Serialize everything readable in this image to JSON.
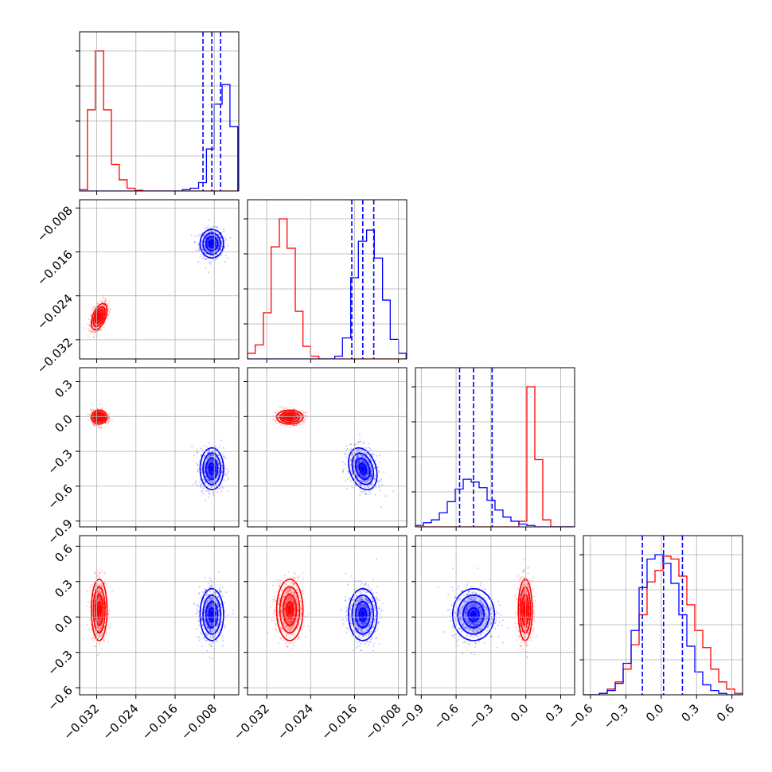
{
  "colors": {
    "blue": "#0000ff",
    "red": "#ff0000",
    "grid": "#b0b0b0"
  },
  "chart_data": {
    "type": "corner",
    "title": "",
    "parameters": [
      {
        "xlim": [
          -0.0355,
          -0.003
        ],
        "ticks": [
          -0.032,
          -0.024,
          -0.016,
          -0.008
        ],
        "tick_labels": [
          "−0.032",
          "−0.024",
          "−0.016",
          "−0.008"
        ]
      },
      {
        "xlim": [
          -0.0355,
          -0.0065
        ],
        "ticks": [
          -0.032,
          -0.024,
          -0.016,
          -0.008
        ],
        "tick_labels": [
          "−0.032",
          "−0.024",
          "−0.016",
          "−0.008"
        ]
      },
      {
        "xlim": [
          -0.95,
          0.42
        ],
        "ticks": [
          -0.9,
          -0.6,
          -0.3,
          0.0,
          0.3
        ],
        "tick_labels": [
          "−0.9",
          "−0.6",
          "−0.3",
          "0.0",
          "0.3"
        ]
      },
      {
        "xlim": [
          -0.66,
          0.69
        ],
        "ticks": [
          -0.6,
          -0.3,
          0.0,
          0.3,
          0.6
        ],
        "tick_labels": [
          "−0.6",
          "−0.3",
          "0.0",
          "0.3",
          "0.6"
        ]
      }
    ],
    "series": [
      {
        "color": "blue",
        "center": [
          -0.0085,
          -0.0145,
          -0.45,
          0.02
        ],
        "sigma": [
          0.0012,
          0.0013,
          0.09,
          0.11
        ],
        "rho": [
          [
            1,
            0,
            0,
            0
          ],
          [
            0,
            1,
            -0.3,
            0
          ],
          [
            0,
            -0.3,
            1,
            0
          ],
          [
            0,
            0,
            0,
            1
          ]
        ],
        "quantiles": [
          [
            -0.0103,
            -0.0085,
            -0.0067
          ],
          [
            -0.0165,
            -0.0145,
            -0.0125
          ],
          [
            -0.57,
            -0.45,
            -0.29
          ],
          [
            -0.16,
            0.02,
            0.18
          ]
        ]
      },
      {
        "color": "red",
        "center": [
          -0.0315,
          -0.0278,
          -0.005,
          0.06
        ],
        "sigma": [
          0.0008,
          0.0012,
          0.03,
          0.13
        ],
        "rho": [
          [
            1,
            0.5,
            0,
            0
          ],
          [
            0.5,
            1,
            0,
            0
          ],
          [
            0,
            0,
            1,
            0
          ],
          [
            0,
            0,
            0,
            1
          ]
        ],
        "quantiles": null
      }
    ],
    "histograms": {
      "0": {
        "edges": [
          -0.0355,
          -0.0339,
          -0.0323,
          -0.0306,
          -0.029,
          -0.0274,
          -0.0258,
          -0.0242,
          -0.0226,
          -0.0209,
          -0.0193,
          -0.0177,
          -0.0161,
          -0.0145,
          -0.0129,
          -0.0112,
          -0.0096,
          -0.008,
          -0.0064,
          -0.0048,
          -0.0032
        ],
        "blue": [
          0,
          0,
          0,
          0,
          0,
          0,
          0,
          0,
          0,
          0,
          0,
          0,
          0,
          0.01,
          0.02,
          0.06,
          0.3,
          0.62,
          0.76,
          0.46
        ],
        "red": [
          0.01,
          0.58,
          1.0,
          0.58,
          0.19,
          0.08,
          0.02,
          0.005,
          0,
          0,
          0,
          0,
          0,
          0,
          0,
          0,
          0,
          0,
          0,
          0
        ]
      },
      "1": {
        "edges": [
          -0.0355,
          -0.0341,
          -0.0326,
          -0.0312,
          -0.0297,
          -0.0283,
          -0.0268,
          -0.0254,
          -0.024,
          -0.0225,
          -0.0211,
          -0.0196,
          -0.0182,
          -0.0167,
          -0.0153,
          -0.0138,
          -0.0124,
          -0.0109,
          -0.0095,
          -0.008,
          -0.0066
        ],
        "blue": [
          0,
          0,
          0,
          0,
          0,
          0,
          0,
          0,
          0,
          0,
          0,
          0.02,
          0.15,
          0.58,
          0.84,
          0.92,
          0.72,
          0.42,
          0.14,
          0.04
        ],
        "red": [
          0.04,
          0.1,
          0.33,
          0.8,
          1.0,
          0.79,
          0.34,
          0.09,
          0.02,
          0,
          0,
          0,
          0,
          0,
          0,
          0,
          0,
          0,
          0,
          0
        ]
      },
      "2": {
        "edges": [
          -0.95,
          -0.8815,
          -0.813,
          -0.7445,
          -0.676,
          -0.6075,
          -0.539,
          -0.4705,
          -0.402,
          -0.3335,
          -0.265,
          -0.1965,
          -0.128,
          -0.0595,
          0.009,
          0.0775,
          0.146,
          0.2145,
          0.283,
          0.3515,
          0.42
        ],
        "blue": [
          0.01,
          0.03,
          0.05,
          0.1,
          0.18,
          0.27,
          0.34,
          0.32,
          0.28,
          0.19,
          0.12,
          0.07,
          0.04,
          0.02,
          0.01,
          0,
          0,
          0,
          0,
          0
        ],
        "red": [
          0,
          0,
          0,
          0,
          0,
          0,
          0,
          0,
          0,
          0,
          0,
          0,
          0,
          0.04,
          1.0,
          0.48,
          0.05,
          0,
          0,
          0
        ]
      },
      "3": {
        "edges": [
          -0.66,
          -0.5925,
          -0.525,
          -0.4575,
          -0.39,
          -0.3225,
          -0.255,
          -0.1875,
          -0.12,
          -0.0525,
          0.015,
          0.0825,
          0.15,
          0.2175,
          0.285,
          0.3525,
          0.42,
          0.4875,
          0.555,
          0.6225,
          0.69
        ],
        "blue": [
          0,
          0,
          0.01,
          0.03,
          0.08,
          0.22,
          0.45,
          0.75,
          0.95,
          0.98,
          0.92,
          0.78,
          0.56,
          0.34,
          0.16,
          0.07,
          0.03,
          0.01,
          0,
          0
        ],
        "red": [
          0,
          0,
          0.01,
          0.04,
          0.09,
          0.18,
          0.35,
          0.56,
          0.79,
          0.87,
          0.97,
          0.95,
          0.83,
          0.63,
          0.45,
          0.33,
          0.18,
          0.09,
          0.04,
          0.01
        ]
      }
    },
    "grid": true
  }
}
